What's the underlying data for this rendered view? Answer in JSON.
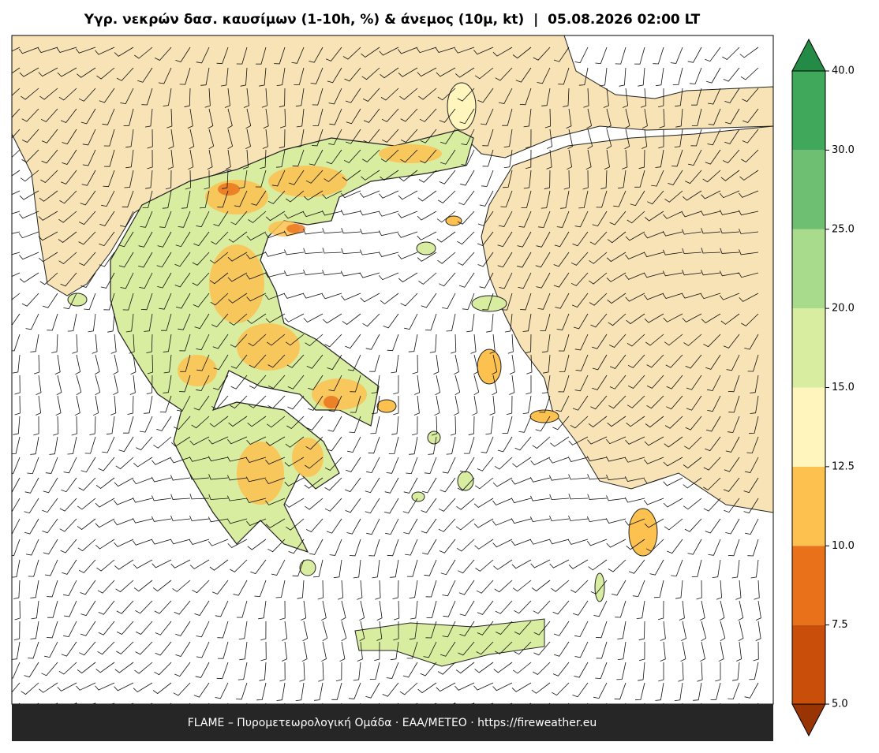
{
  "title": "Υγρ. νεκρών δασ. καυσίμων (1-10h, %) & άνεμος (10μ, kt)  |  05.08.2026 02:00 LT",
  "footer": "FLAME – Πυρομετεωρολογική Ομάδα · ΕΑΑ/METEO · https://fireweather.eu",
  "colorbar": {
    "ticks": [
      {
        "value": 5,
        "label": "5.0"
      },
      {
        "value": 7.5,
        "label": "7.5"
      },
      {
        "value": 10,
        "label": "10.0"
      },
      {
        "value": 12.5,
        "label": "12.5"
      },
      {
        "value": 15,
        "label": "15.0"
      },
      {
        "value": 20,
        "label": "20.0"
      },
      {
        "value": 25,
        "label": "25.0"
      },
      {
        "value": 30,
        "label": "30.0"
      },
      {
        "value": 40,
        "label": "40.0"
      }
    ],
    "colors": [
      "#c84e0a",
      "#e8711a",
      "#fdc150",
      "#fff5bd",
      "#d9eda0",
      "#a8dc8c",
      "#6fbf73",
      "#3fa85a"
    ],
    "under_color": "#993404",
    "over_color": "#238b45"
  }
}
